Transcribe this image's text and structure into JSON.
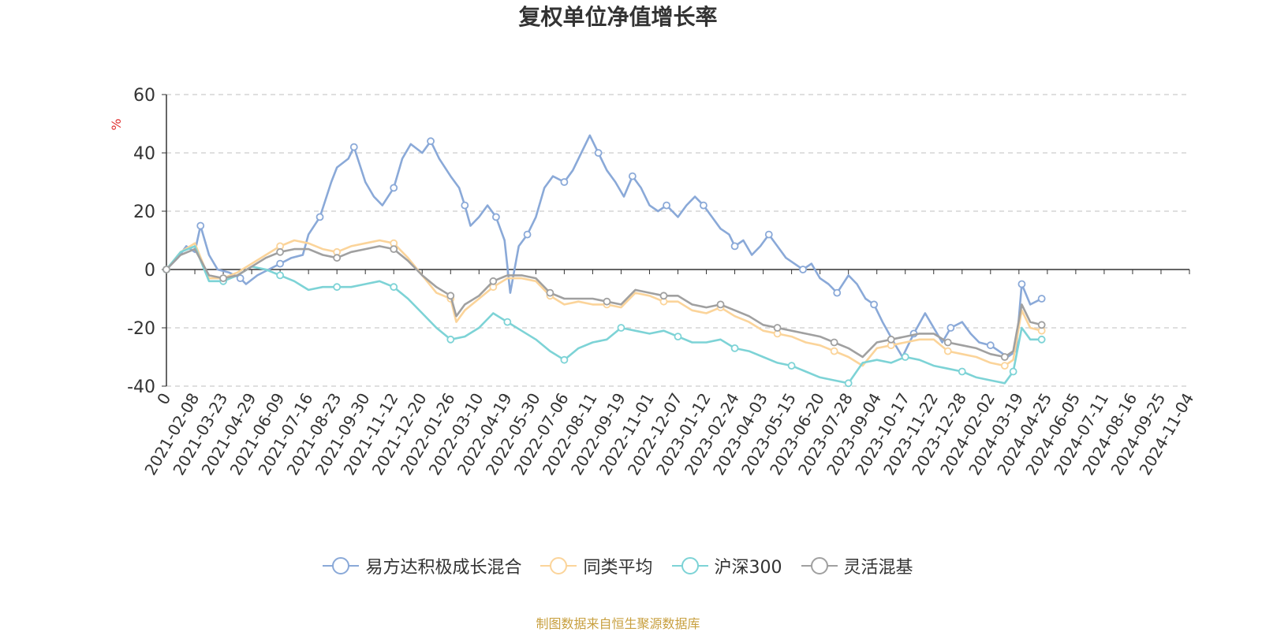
{
  "chart_data": {
    "type": "line",
    "title": "复权单位净值增长率",
    "ylabel": "%",
    "xlabel": "",
    "ylim": [
      -40,
      60
    ],
    "yticks": [
      -40,
      -20,
      0,
      20,
      40,
      60
    ],
    "grid": true,
    "legend_position": "bottom-center",
    "categories": [
      "0",
      "2021-02-08",
      "2021-03-23",
      "2021-04-29",
      "2021-06-09",
      "2021-07-16",
      "2021-08-23",
      "2021-09-30",
      "2021-11-12",
      "2021-12-20",
      "2022-01-26",
      "2022-03-10",
      "2022-04-19",
      "2022-05-30",
      "2022-07-06",
      "2022-08-11",
      "2022-09-19",
      "2022-11-01",
      "2022-12-07",
      "2023-01-12",
      "2023-02-24",
      "2023-04-03",
      "2023-05-15",
      "2023-06-20",
      "2023-07-28",
      "2023-09-04",
      "2023-10-17",
      "2023-11-22",
      "2023-12-28",
      "2024-02-02",
      "2024-03-19",
      "2024-04-25",
      "2024-06-05",
      "2024-07-11",
      "2024-08-16",
      "2024-09-25",
      "2024-11-04"
    ],
    "series": [
      {
        "name": "易方达积极成长混合",
        "color": "#8aa9d8",
        "points": [
          [
            0,
            0
          ],
          [
            0.4,
            4
          ],
          [
            0.7,
            8
          ],
          [
            1,
            6
          ],
          [
            1.2,
            15
          ],
          [
            1.5,
            5
          ],
          [
            1.8,
            0
          ],
          [
            2.2,
            -1
          ],
          [
            2.6,
            -3
          ],
          [
            2.8,
            -5
          ],
          [
            3.2,
            -2
          ],
          [
            3.6,
            0
          ],
          [
            4,
            2
          ],
          [
            4.4,
            4
          ],
          [
            4.8,
            5
          ],
          [
            5,
            12
          ],
          [
            5.4,
            18
          ],
          [
            5.8,
            30
          ],
          [
            6,
            35
          ],
          [
            6.4,
            38
          ],
          [
            6.6,
            42
          ],
          [
            7,
            30
          ],
          [
            7.3,
            25
          ],
          [
            7.6,
            22
          ],
          [
            8,
            28
          ],
          [
            8.3,
            38
          ],
          [
            8.6,
            43
          ],
          [
            9,
            40
          ],
          [
            9.3,
            44
          ],
          [
            9.6,
            38
          ],
          [
            10,
            32
          ],
          [
            10.3,
            28
          ],
          [
            10.5,
            22
          ],
          [
            10.7,
            15
          ],
          [
            11,
            18
          ],
          [
            11.3,
            22
          ],
          [
            11.6,
            18
          ],
          [
            11.9,
            10
          ],
          [
            12.1,
            -8
          ],
          [
            12.4,
            8
          ],
          [
            12.7,
            12
          ],
          [
            13,
            18
          ],
          [
            13.3,
            28
          ],
          [
            13.6,
            32
          ],
          [
            14,
            30
          ],
          [
            14.3,
            34
          ],
          [
            14.6,
            40
          ],
          [
            14.9,
            46
          ],
          [
            15.2,
            40
          ],
          [
            15.5,
            34
          ],
          [
            15.8,
            30
          ],
          [
            16.1,
            25
          ],
          [
            16.4,
            32
          ],
          [
            16.7,
            28
          ],
          [
            17,
            22
          ],
          [
            17.3,
            20
          ],
          [
            17.6,
            22
          ],
          [
            18,
            18
          ],
          [
            18.3,
            22
          ],
          [
            18.6,
            25
          ],
          [
            18.9,
            22
          ],
          [
            19.2,
            18
          ],
          [
            19.5,
            14
          ],
          [
            19.8,
            12
          ],
          [
            20,
            8
          ],
          [
            20.3,
            10
          ],
          [
            20.6,
            5
          ],
          [
            20.9,
            8
          ],
          [
            21.2,
            12
          ],
          [
            21.5,
            8
          ],
          [
            21.8,
            4
          ],
          [
            22.1,
            2
          ],
          [
            22.4,
            0
          ],
          [
            22.7,
            2
          ],
          [
            23,
            -3
          ],
          [
            23.3,
            -5
          ],
          [
            23.6,
            -8
          ],
          [
            24,
            -2
          ],
          [
            24.3,
            -5
          ],
          [
            24.6,
            -10
          ],
          [
            24.9,
            -12
          ],
          [
            25.2,
            -18
          ],
          [
            25.6,
            -25
          ],
          [
            25.9,
            -30
          ],
          [
            26.3,
            -22
          ],
          [
            26.7,
            -15
          ],
          [
            27,
            -20
          ],
          [
            27.3,
            -25
          ],
          [
            27.6,
            -20
          ],
          [
            28,
            -18
          ],
          [
            28.3,
            -22
          ],
          [
            28.6,
            -25
          ],
          [
            29,
            -26
          ],
          [
            29.3,
            -28
          ],
          [
            29.6,
            -30
          ],
          [
            29.9,
            -28
          ],
          [
            30.1,
            -5
          ],
          [
            30.4,
            -12
          ],
          [
            30.8,
            -10
          ]
        ]
      },
      {
        "name": "同类平均",
        "color": "#fbd49a",
        "points": [
          [
            0,
            0
          ],
          [
            0.5,
            6
          ],
          [
            1,
            9
          ],
          [
            1.5,
            -3
          ],
          [
            2,
            -3
          ],
          [
            2.5,
            -1
          ],
          [
            3,
            2
          ],
          [
            3.5,
            5
          ],
          [
            4,
            8
          ],
          [
            4.5,
            10
          ],
          [
            5,
            9
          ],
          [
            5.5,
            7
          ],
          [
            6,
            6
          ],
          [
            6.5,
            8
          ],
          [
            7,
            9
          ],
          [
            7.5,
            10
          ],
          [
            8,
            9
          ],
          [
            8.5,
            4
          ],
          [
            9,
            -2
          ],
          [
            9.5,
            -8
          ],
          [
            10,
            -10
          ],
          [
            10.2,
            -18
          ],
          [
            10.5,
            -14
          ],
          [
            11,
            -10
          ],
          [
            11.5,
            -6
          ],
          [
            12,
            -3
          ],
          [
            12.5,
            -3
          ],
          [
            13,
            -4
          ],
          [
            13.5,
            -9
          ],
          [
            14,
            -12
          ],
          [
            14.5,
            -11
          ],
          [
            15,
            -12
          ],
          [
            15.5,
            -12
          ],
          [
            16,
            -13
          ],
          [
            16.5,
            -8
          ],
          [
            17,
            -9
          ],
          [
            17.5,
            -11
          ],
          [
            18,
            -11
          ],
          [
            18.5,
            -14
          ],
          [
            19,
            -15
          ],
          [
            19.5,
            -13
          ],
          [
            20,
            -16
          ],
          [
            20.5,
            -18
          ],
          [
            21,
            -21
          ],
          [
            21.5,
            -22
          ],
          [
            22,
            -23
          ],
          [
            22.5,
            -25
          ],
          [
            23,
            -26
          ],
          [
            23.5,
            -28
          ],
          [
            24,
            -30
          ],
          [
            24.5,
            -33
          ],
          [
            25,
            -27
          ],
          [
            25.5,
            -26
          ],
          [
            26,
            -25
          ],
          [
            26.5,
            -24
          ],
          [
            27,
            -24
          ],
          [
            27.5,
            -28
          ],
          [
            28,
            -29
          ],
          [
            28.5,
            -30
          ],
          [
            29,
            -32
          ],
          [
            29.5,
            -33
          ],
          [
            29.8,
            -31
          ],
          [
            30.1,
            -14
          ],
          [
            30.4,
            -20
          ],
          [
            30.8,
            -21
          ]
        ]
      },
      {
        "name": "沪深300",
        "color": "#7dd3d6",
        "points": [
          [
            0,
            0
          ],
          [
            0.5,
            6
          ],
          [
            1,
            8
          ],
          [
            1.5,
            -4
          ],
          [
            2,
            -4
          ],
          [
            2.5,
            -2
          ],
          [
            3,
            1
          ],
          [
            3.5,
            0
          ],
          [
            4,
            -2
          ],
          [
            4.5,
            -4
          ],
          [
            5,
            -7
          ],
          [
            5.5,
            -6
          ],
          [
            6,
            -6
          ],
          [
            6.5,
            -6
          ],
          [
            7,
            -5
          ],
          [
            7.5,
            -4
          ],
          [
            8,
            -6
          ],
          [
            8.5,
            -10
          ],
          [
            9,
            -15
          ],
          [
            9.5,
            -20
          ],
          [
            10,
            -24
          ],
          [
            10.5,
            -23
          ],
          [
            11,
            -20
          ],
          [
            11.5,
            -15
          ],
          [
            12,
            -18
          ],
          [
            12.5,
            -21
          ],
          [
            13,
            -24
          ],
          [
            13.5,
            -28
          ],
          [
            14,
            -31
          ],
          [
            14.5,
            -27
          ],
          [
            15,
            -25
          ],
          [
            15.5,
            -24
          ],
          [
            16,
            -20
          ],
          [
            16.5,
            -21
          ],
          [
            17,
            -22
          ],
          [
            17.5,
            -21
          ],
          [
            18,
            -23
          ],
          [
            18.5,
            -25
          ],
          [
            19,
            -25
          ],
          [
            19.5,
            -24
          ],
          [
            20,
            -27
          ],
          [
            20.5,
            -28
          ],
          [
            21,
            -30
          ],
          [
            21.5,
            -32
          ],
          [
            22,
            -33
          ],
          [
            22.5,
            -35
          ],
          [
            23,
            -37
          ],
          [
            23.5,
            -38
          ],
          [
            24,
            -39
          ],
          [
            24.5,
            -32
          ],
          [
            25,
            -31
          ],
          [
            25.5,
            -32
          ],
          [
            26,
            -30
          ],
          [
            26.5,
            -31
          ],
          [
            27,
            -33
          ],
          [
            27.5,
            -34
          ],
          [
            28,
            -35
          ],
          [
            28.5,
            -37
          ],
          [
            29,
            -38
          ],
          [
            29.5,
            -39
          ],
          [
            29.8,
            -35
          ],
          [
            30.1,
            -20
          ],
          [
            30.4,
            -24
          ],
          [
            30.8,
            -24
          ]
        ]
      },
      {
        "name": "灵活混基",
        "color": "#a0a0a0",
        "points": [
          [
            0,
            0
          ],
          [
            0.5,
            5
          ],
          [
            1,
            7
          ],
          [
            1.5,
            -2
          ],
          [
            2,
            -3
          ],
          [
            2.5,
            -2
          ],
          [
            3,
            1
          ],
          [
            3.5,
            4
          ],
          [
            4,
            6
          ],
          [
            4.5,
            7
          ],
          [
            5,
            7
          ],
          [
            5.5,
            5
          ],
          [
            6,
            4
          ],
          [
            6.5,
            6
          ],
          [
            7,
            7
          ],
          [
            7.5,
            8
          ],
          [
            8,
            7
          ],
          [
            8.5,
            3
          ],
          [
            9,
            -2
          ],
          [
            9.5,
            -6
          ],
          [
            10,
            -9
          ],
          [
            10.2,
            -16
          ],
          [
            10.5,
            -12
          ],
          [
            11,
            -9
          ],
          [
            11.5,
            -4
          ],
          [
            12,
            -2
          ],
          [
            12.5,
            -2
          ],
          [
            13,
            -3
          ],
          [
            13.5,
            -8
          ],
          [
            14,
            -10
          ],
          [
            14.5,
            -10
          ],
          [
            15,
            -10
          ],
          [
            15.5,
            -11
          ],
          [
            16,
            -12
          ],
          [
            16.5,
            -7
          ],
          [
            17,
            -8
          ],
          [
            17.5,
            -9
          ],
          [
            18,
            -9
          ],
          [
            18.5,
            -12
          ],
          [
            19,
            -13
          ],
          [
            19.5,
            -12
          ],
          [
            20,
            -14
          ],
          [
            20.5,
            -16
          ],
          [
            21,
            -19
          ],
          [
            21.5,
            -20
          ],
          [
            22,
            -21
          ],
          [
            22.5,
            -22
          ],
          [
            23,
            -23
          ],
          [
            23.5,
            -25
          ],
          [
            24,
            -27
          ],
          [
            24.5,
            -30
          ],
          [
            25,
            -25
          ],
          [
            25.5,
            -24
          ],
          [
            26,
            -23
          ],
          [
            26.5,
            -22
          ],
          [
            27,
            -22
          ],
          [
            27.5,
            -25
          ],
          [
            28,
            -26
          ],
          [
            28.5,
            -27
          ],
          [
            29,
            -29
          ],
          [
            29.5,
            -30
          ],
          [
            29.8,
            -28
          ],
          [
            30.1,
            -12
          ],
          [
            30.4,
            -18
          ],
          [
            30.8,
            -19
          ]
        ]
      }
    ]
  },
  "source_note": "制图数据来自恒生聚源数据库"
}
